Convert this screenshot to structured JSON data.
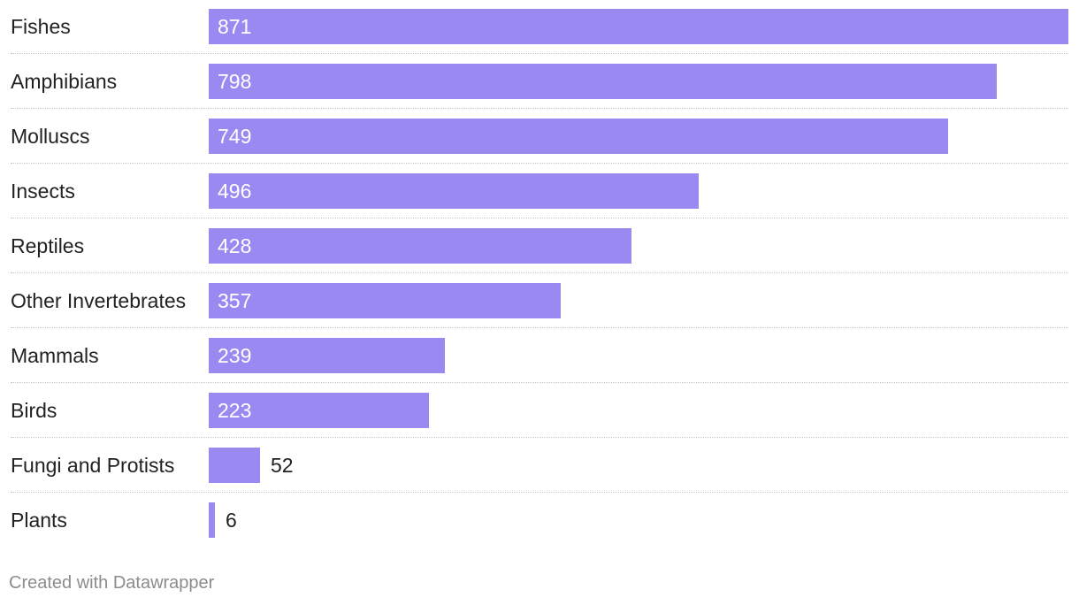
{
  "chart_data": {
    "type": "bar",
    "orientation": "horizontal",
    "categories": [
      "Fishes",
      "Amphibians",
      "Molluscs",
      "Insects",
      "Reptiles",
      "Other Invertebrates",
      "Mammals",
      "Birds",
      "Fungi and Protists",
      "Plants"
    ],
    "values": [
      871,
      798,
      749,
      496,
      428,
      357,
      239,
      223,
      52,
      6
    ],
    "xlim": [
      0,
      871
    ],
    "grid": false,
    "bar_color": "#9b89f2",
    "label_color_inside": "#ffffff",
    "label_color_outside": "#222222"
  },
  "footer": {
    "credit": "Created with Datawrapper"
  }
}
